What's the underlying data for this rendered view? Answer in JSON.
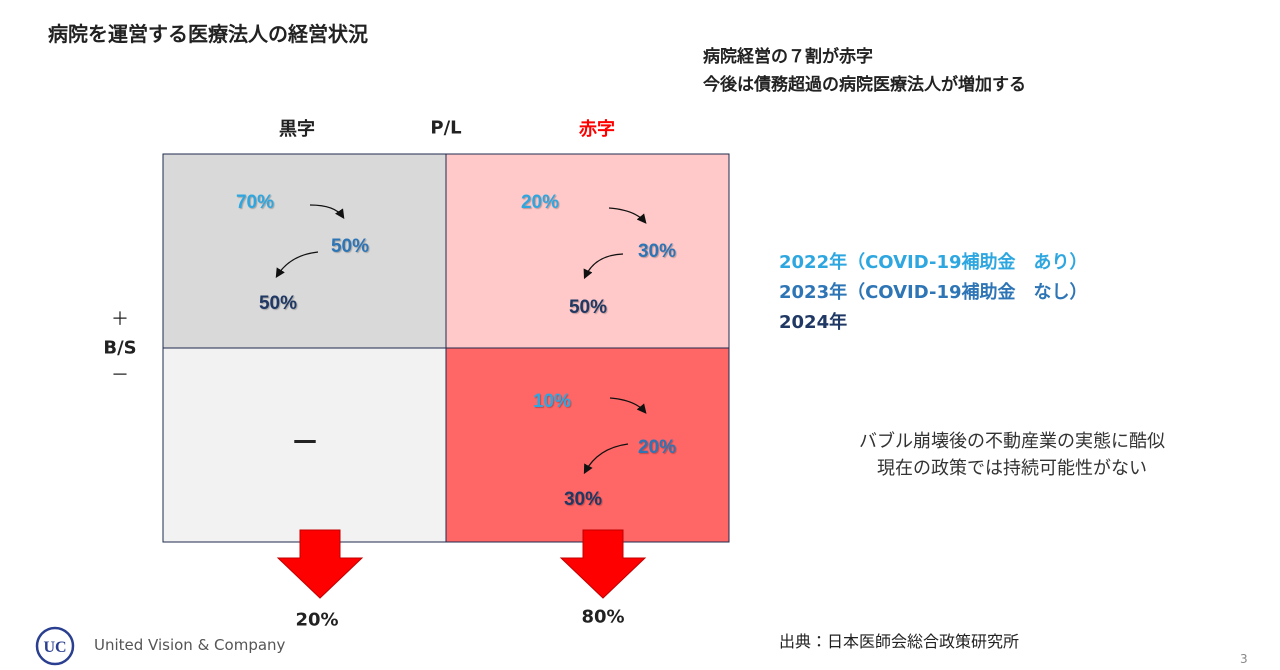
{
  "header": {
    "title": "病院を運営する医療法人の経営状況",
    "headline": [
      "病院経営の７割が赤字",
      "今後は債務超過の病院医療法人が増加する"
    ]
  },
  "matrix": {
    "x_axis": "P/L",
    "y_axis": "B/S",
    "columns": [
      "黒字",
      "赤字"
    ],
    "rows": [
      "＋",
      "－"
    ],
    "cells": [
      [
        "70%",
        "50%",
        "50%"
      ],
      [
        "20%",
        "30%",
        "50%"
      ],
      [
        "—"
      ],
      [
        "10%",
        "20%",
        "30%"
      ]
    ],
    "totals": [
      "20%",
      "80%"
    ]
  },
  "legend": [
    "2022年（COVID-19補助金　あり）",
    "2023年（COVID-19補助金　なし）",
    "2024年"
  ],
  "note": [
    "バブル崩壊後の不動産業の実態に酷似",
    "現在の政策では持続可能性がない"
  ],
  "footer": {
    "source": "出典：日本医師会総合政策研究所",
    "company": "United Vision & Company",
    "page": "3"
  }
}
